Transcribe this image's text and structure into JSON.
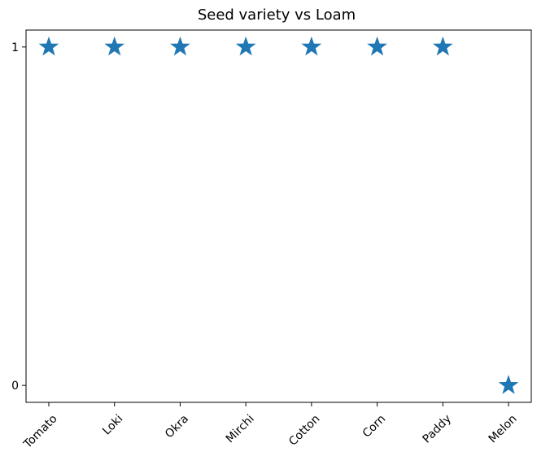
{
  "chart_data": {
    "type": "scatter",
    "title": "Seed variety vs Loam",
    "xlabel": "",
    "ylabel": "",
    "categories": [
      "Tomato",
      "Loki",
      "Okra",
      "Mirchi",
      "Cotton",
      "Corn",
      "Paddy",
      "Melon"
    ],
    "values": [
      1,
      1,
      1,
      1,
      1,
      1,
      1,
      0
    ],
    "ylim": [
      -0.05,
      1.05
    ],
    "yticks": [
      0,
      1
    ],
    "ytick_labels": [
      "0",
      "1"
    ],
    "marker": "star",
    "color": "#1f77b4",
    "grid": false,
    "xtick_rotation": -45
  }
}
